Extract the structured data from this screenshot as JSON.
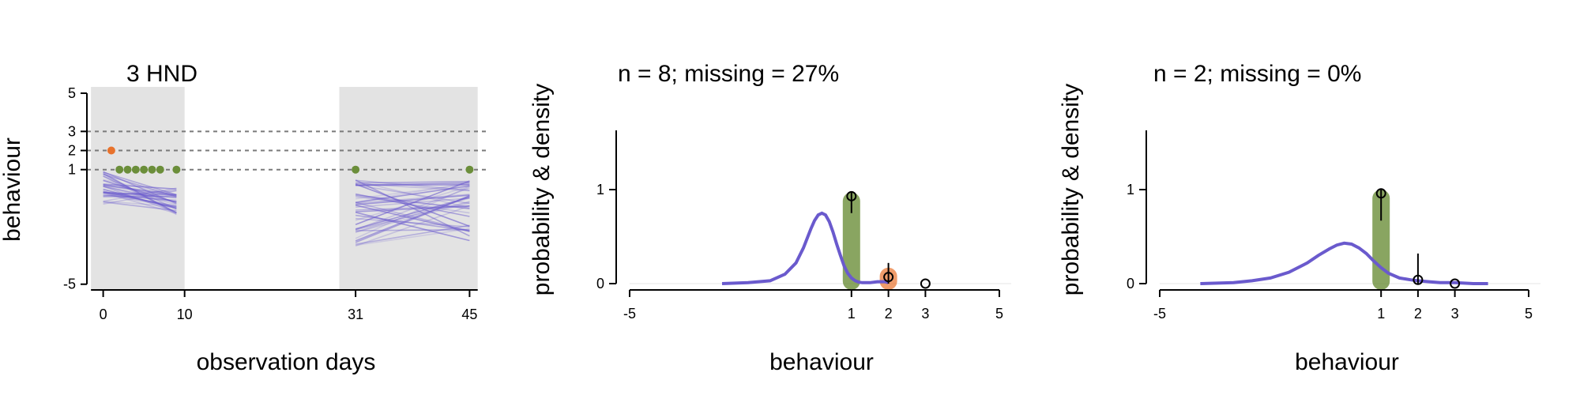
{
  "colors": {
    "trajectory": "#6a5acd",
    "green": "#6b8e3a",
    "orange": "#e8722c",
    "shade": "#e3e3e3",
    "reference": "#7a7a7a"
  },
  "chart_data": [
    {
      "type": "line",
      "title": "3 HND",
      "xlabel": "observation days",
      "ylabel": "behaviour",
      "xlim": [
        -2,
        47
      ],
      "ylim": [
        -5.3,
        5
      ],
      "x_ticks": [
        0,
        10,
        31,
        45
      ],
      "y_ticks": [
        5,
        3,
        2,
        1,
        -5
      ],
      "reference_lines_y": [
        1,
        2,
        3
      ],
      "shaded_x_ranges": [
        [
          -1.5,
          10
        ],
        [
          29,
          46
        ]
      ],
      "observed_points": [
        {
          "x": 1,
          "y": 2,
          "color": "orange"
        },
        {
          "x": 2,
          "y": 1,
          "color": "green"
        },
        {
          "x": 3,
          "y": 1,
          "color": "green"
        },
        {
          "x": 4,
          "y": 1,
          "color": "green"
        },
        {
          "x": 5,
          "y": 1,
          "color": "green"
        },
        {
          "x": 6,
          "y": 1,
          "color": "green"
        },
        {
          "x": 7,
          "y": 1,
          "color": "green"
        },
        {
          "x": 9,
          "y": 1,
          "color": "green"
        },
        {
          "x": 31,
          "y": 1,
          "color": "green"
        },
        {
          "x": 45,
          "y": 1,
          "color": "green"
        }
      ],
      "trajectory_bands": [
        {
          "x": [
            0,
            9
          ],
          "center_start": 0.1,
          "center_end": -0.7,
          "spread": 0.9,
          "count": 30
        },
        {
          "x": [
            31,
            45
          ],
          "center_start": -1.2,
          "center_end": -1.1,
          "spread": 1.8,
          "count": 40
        }
      ]
    },
    {
      "type": "line",
      "title": "n = 8; missing = 27%",
      "xlabel": "behaviour",
      "ylabel": "probability & density",
      "xlim": [
        -5,
        5
      ],
      "ylim": [
        -0.05,
        1.6
      ],
      "x_ticks": [
        -5,
        1,
        2,
        3,
        5
      ],
      "y_ticks": [
        0,
        1
      ],
      "density": {
        "x": [
          -2.5,
          -1.8,
          -1.2,
          -0.8,
          -0.5,
          -0.3,
          -0.1,
          0.0,
          0.1,
          0.2,
          0.3,
          0.4,
          0.5,
          0.6,
          0.7,
          0.8,
          0.9,
          1.0,
          1.1,
          1.2,
          1.3,
          1.5,
          1.7,
          1.9,
          2.0
        ],
        "y": [
          0.0,
          0.01,
          0.03,
          0.1,
          0.22,
          0.38,
          0.58,
          0.67,
          0.73,
          0.75,
          0.73,
          0.66,
          0.55,
          0.42,
          0.3,
          0.19,
          0.11,
          0.06,
          0.03,
          0.015,
          0.01,
          0.01,
          0.02,
          0.02,
          0.01
        ]
      },
      "bars": [
        {
          "x": 1,
          "height": 0.97,
          "color": "green"
        },
        {
          "x": 2,
          "height": 0.17,
          "color": "orange"
        }
      ],
      "estimates": [
        {
          "x": 1,
          "y": 0.93,
          "low": 0.75,
          "high": 0.98
        },
        {
          "x": 2,
          "y": 0.07,
          "low": 0.0,
          "high": 0.22
        },
        {
          "x": 3,
          "y": 0.0,
          "low": 0.0,
          "high": 0.0
        }
      ]
    },
    {
      "type": "line",
      "title": "n = 2; missing = 0%",
      "xlabel": "behaviour",
      "ylabel": "probability & density",
      "xlim": [
        -5,
        5
      ],
      "ylim": [
        -0.05,
        1.6
      ],
      "x_ticks": [
        -5,
        1,
        2,
        3,
        5
      ],
      "y_ticks": [
        0,
        1
      ],
      "density": {
        "x": [
          -3.9,
          -3.0,
          -2.5,
          -2.0,
          -1.5,
          -1.0,
          -0.7,
          -0.4,
          -0.2,
          0.0,
          0.2,
          0.4,
          0.6,
          0.8,
          1.0,
          1.2,
          1.5,
          1.8,
          2.0,
          2.3,
          2.6,
          3.0,
          3.5,
          3.9
        ],
        "y": [
          0.0,
          0.01,
          0.03,
          0.06,
          0.12,
          0.22,
          0.3,
          0.37,
          0.41,
          0.43,
          0.42,
          0.38,
          0.32,
          0.24,
          0.17,
          0.11,
          0.06,
          0.04,
          0.03,
          0.02,
          0.01,
          0.01,
          0.0,
          0.0
        ]
      },
      "bars": [
        {
          "x": 1,
          "height": 1.0,
          "color": "green"
        }
      ],
      "estimates": [
        {
          "x": 1,
          "y": 0.96,
          "low": 0.67,
          "high": 1.0
        },
        {
          "x": 2,
          "y": 0.04,
          "low": 0.0,
          "high": 0.32
        },
        {
          "x": 3,
          "y": 0.0,
          "low": 0.0,
          "high": 0.0
        }
      ]
    }
  ]
}
